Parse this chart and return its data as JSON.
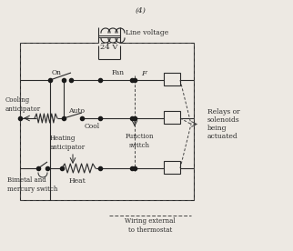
{
  "bg_color": "#ede9e3",
  "lc": "#2a2a2a",
  "dc": "#1a1a1a",
  "dsh": "#444444",
  "title": "(4)",
  "txt_line_voltage": "Line voltage",
  "txt_24v": "24 V",
  "txt_fan": "Fan",
  "txt_F": "F",
  "txt_on": "On",
  "txt_auto": "Auto",
  "txt_cool": "Cool",
  "txt_heat": "Heat",
  "txt_cooling": "Cooling\nanticipator",
  "txt_heating": "Heating\nanticipator",
  "txt_bimetal": "Bimetal and\nmercury switch",
  "txt_function": "Function\nswitch",
  "txt_wiring": "Wiring external\nto thermostat",
  "txt_relays": "Relays or\nsolenoids\nbeing\nactuated"
}
